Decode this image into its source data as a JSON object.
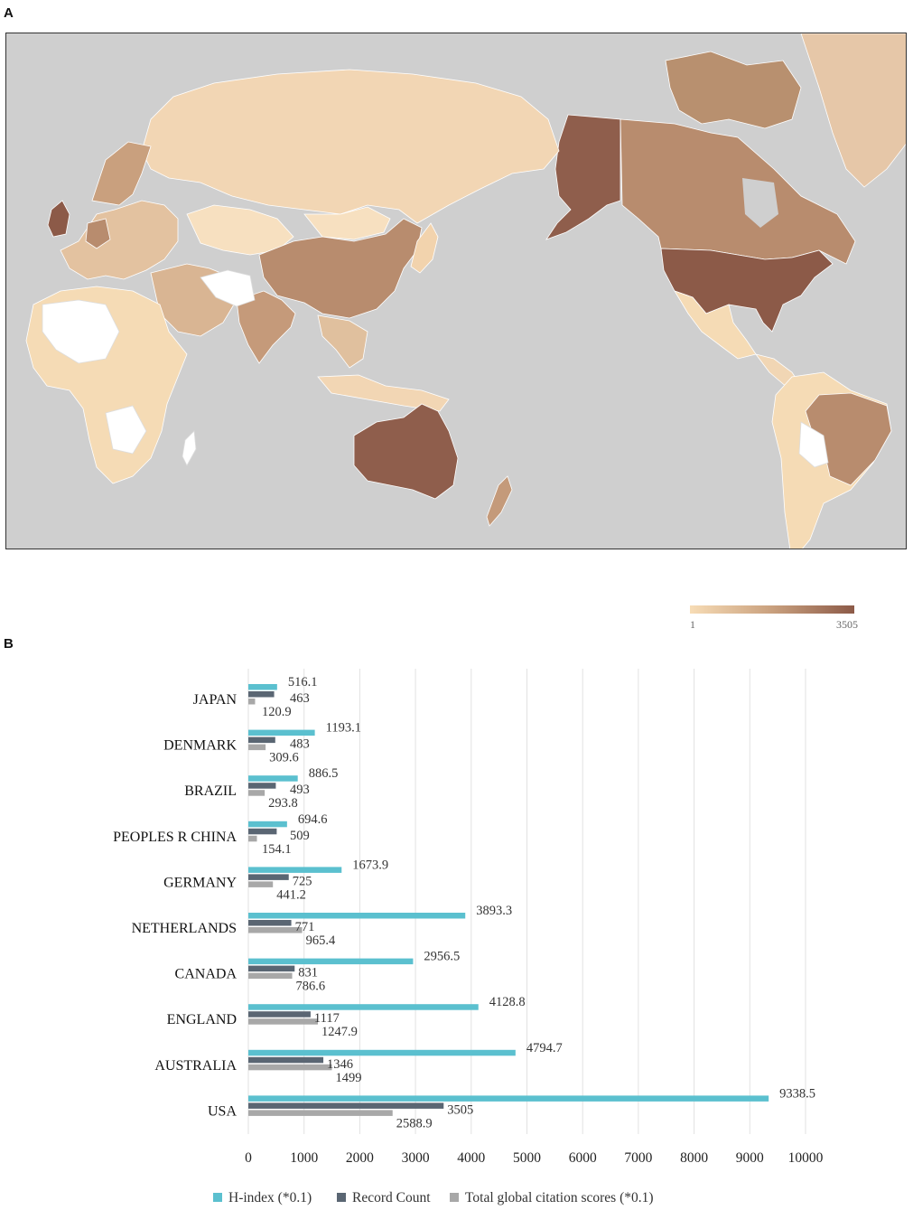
{
  "panels": {
    "a": "A",
    "b": "B"
  },
  "map": {
    "colors": {
      "ocean": "#cfcfcf",
      "no_data": "#ffffff",
      "low": "#f7dcb5",
      "high": "#8c5a48"
    },
    "scale": {
      "min": "1",
      "max": "3505"
    }
  },
  "chart_data": {
    "type": "bar",
    "orientation": "horizontal",
    "categories": [
      "JAPAN",
      "DENMARK",
      "BRAZIL",
      "PEOPLES R CHINA",
      "GERMANY",
      "NETHERLANDS",
      "CANADA",
      "ENGLAND",
      "AUSTRALIA",
      "USA"
    ],
    "series": [
      {
        "name": "H-index (*0.1)",
        "color": "#5bc0cf",
        "values": [
          516.1,
          1193.1,
          886.5,
          694.6,
          1673.9,
          3893.3,
          2956.5,
          4128.8,
          4794.7,
          9338.5
        ],
        "labels": [
          "516.1",
          "1193.1",
          "886.5",
          "694.6",
          "1673.9",
          "3893.3",
          "2956.5",
          "4128.8",
          "4794.7",
          "9338.5"
        ]
      },
      {
        "name": "Record Count",
        "color": "#5a6673",
        "values": [
          463,
          483,
          493,
          509,
          725,
          771,
          831,
          1117,
          1346,
          3505
        ],
        "labels": [
          "463",
          "483",
          "493",
          "509",
          "725",
          "771",
          "831",
          "1117",
          "1346",
          "3505"
        ]
      },
      {
        "name": "Total global citation scores (*0.1)",
        "color": "#a8a8a8",
        "values": [
          120.9,
          309.6,
          293.8,
          154.1,
          441.2,
          965.4,
          786.6,
          1247.9,
          1499,
          2588.9
        ],
        "labels": [
          "120.9",
          "309.6",
          "293.8",
          "154.1",
          "441.2",
          "965.4",
          "786.6",
          "1247.9",
          "1499",
          "2588.9"
        ]
      }
    ],
    "xlim": [
      0,
      10000
    ],
    "xticks": [
      "0",
      "1000",
      "2000",
      "3000",
      "4000",
      "5000",
      "6000",
      "7000",
      "8000",
      "9000",
      "10000"
    ],
    "grid": true,
    "legend": "bottom"
  }
}
